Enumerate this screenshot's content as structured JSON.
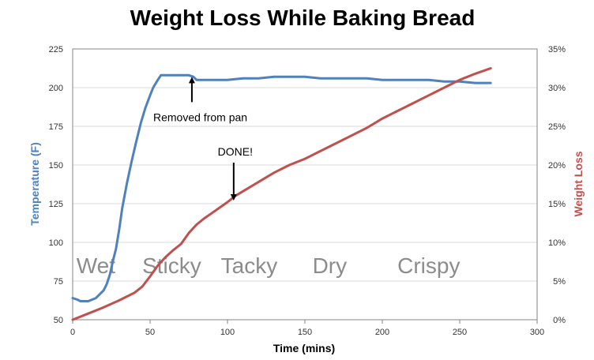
{
  "colors": {
    "temperature": "#4f81bd",
    "weight_loss": "#c0504d",
    "grid": "#d9d9d9",
    "phase_text": "#8c8c8c"
  },
  "chart_data": {
    "type": "line",
    "title": "Weight Loss While Baking Bread",
    "xlabel": "Time (mins)",
    "ylabel": "Temperature (F)",
    "y2label": "Weight Loss",
    "xlim": [
      0,
      300
    ],
    "ylim": [
      50,
      225
    ],
    "y2lim": [
      0,
      35
    ],
    "x_ticks": [
      "0",
      "50",
      "100",
      "150",
      "200",
      "250",
      "300"
    ],
    "y_ticks": [
      "50",
      "75",
      "100",
      "125",
      "150",
      "175",
      "200",
      "225"
    ],
    "y2_ticks": [
      "0%",
      "5%",
      "10%",
      "15%",
      "20%",
      "25%",
      "30%",
      "35%"
    ],
    "grid": true,
    "series": [
      {
        "name": "Temperature (F)",
        "axis": "left",
        "color": "#4f81bd",
        "points": [
          [
            0,
            64
          ],
          [
            3,
            63
          ],
          [
            5,
            62
          ],
          [
            10,
            62
          ],
          [
            15,
            64
          ],
          [
            18,
            67
          ],
          [
            20,
            69
          ],
          [
            22,
            73
          ],
          [
            24,
            79
          ],
          [
            26,
            88
          ],
          [
            28,
            96
          ],
          [
            30,
            108
          ],
          [
            32,
            122
          ],
          [
            35,
            138
          ],
          [
            38,
            152
          ],
          [
            41,
            165
          ],
          [
            44,
            177
          ],
          [
            47,
            187
          ],
          [
            50,
            195
          ],
          [
            52,
            200
          ],
          [
            55,
            205
          ],
          [
            57,
            208
          ],
          [
            60,
            208
          ],
          [
            65,
            208
          ],
          [
            70,
            208
          ],
          [
            75,
            208
          ],
          [
            78,
            207
          ],
          [
            80,
            205
          ],
          [
            85,
            205
          ],
          [
            90,
            205
          ],
          [
            100,
            205
          ],
          [
            110,
            206
          ],
          [
            120,
            206
          ],
          [
            130,
            207
          ],
          [
            140,
            207
          ],
          [
            150,
            207
          ],
          [
            160,
            206
          ],
          [
            170,
            206
          ],
          [
            180,
            206
          ],
          [
            190,
            206
          ],
          [
            200,
            205
          ],
          [
            210,
            205
          ],
          [
            220,
            205
          ],
          [
            230,
            205
          ],
          [
            240,
            204
          ],
          [
            250,
            204
          ],
          [
            260,
            203
          ],
          [
            270,
            203
          ]
        ]
      },
      {
        "name": "Weight Loss",
        "axis": "right",
        "color": "#c0504d",
        "points": [
          [
            0,
            0
          ],
          [
            10,
            0.8
          ],
          [
            20,
            1.6
          ],
          [
            30,
            2.5
          ],
          [
            40,
            3.5
          ],
          [
            45,
            4.3
          ],
          [
            50,
            5.6
          ],
          [
            55,
            7.0
          ],
          [
            60,
            8.1
          ],
          [
            65,
            9.0
          ],
          [
            70,
            9.8
          ],
          [
            75,
            11.2
          ],
          [
            80,
            12.3
          ],
          [
            85,
            13.1
          ],
          [
            90,
            13.8
          ],
          [
            95,
            14.5
          ],
          [
            100,
            15.2
          ],
          [
            105,
            16.0
          ],
          [
            110,
            16.6
          ],
          [
            120,
            17.8
          ],
          [
            130,
            19.0
          ],
          [
            140,
            20.0
          ],
          [
            150,
            20.8
          ],
          [
            160,
            21.8
          ],
          [
            170,
            22.8
          ],
          [
            180,
            23.8
          ],
          [
            190,
            24.8
          ],
          [
            200,
            26.0
          ],
          [
            210,
            27.0
          ],
          [
            220,
            28.0
          ],
          [
            230,
            29.0
          ],
          [
            240,
            30.0
          ],
          [
            250,
            31.0
          ],
          [
            260,
            31.8
          ],
          [
            270,
            32.5
          ]
        ]
      }
    ],
    "phases": [
      {
        "label": "Wet",
        "x": 15
      },
      {
        "label": "Sticky",
        "x": 64
      },
      {
        "label": "Tacky",
        "x": 114
      },
      {
        "label": "Dry",
        "x": 166
      },
      {
        "label": "Crispy",
        "x": 230
      }
    ],
    "annotations": [
      {
        "text": "Removed from pan",
        "x": 77,
        "y": 209,
        "axis": "left"
      },
      {
        "text": "DONE!",
        "x": 104,
        "y": 15.2,
        "axis": "right"
      }
    ]
  }
}
